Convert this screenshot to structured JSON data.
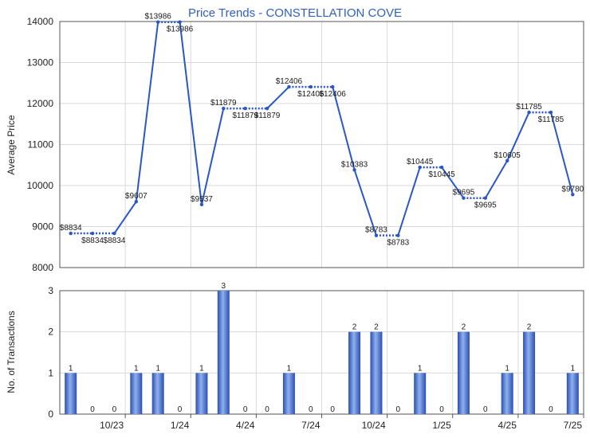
{
  "chart_data": [
    {
      "type": "line",
      "title": "Price Trends - CONSTELLATION COVE",
      "ylabel": "Average Price",
      "ylim": [
        8000,
        14000
      ],
      "yticks": [
        8000,
        9000,
        10000,
        11000,
        12000,
        13000,
        14000
      ],
      "grid": true,
      "series": [
        {
          "values": [
            8834,
            8834,
            8834,
            9607,
            13986,
            13986,
            9537,
            11879,
            11879,
            11879,
            12406,
            12406,
            12406,
            10383,
            8783,
            8783,
            10445,
            10445,
            9695,
            9695,
            10605,
            11785,
            11785,
            9780
          ],
          "labels": [
            "$8834",
            "$8834",
            "$8834",
            "$9607",
            "$13986",
            "$13986",
            "$9537",
            "$11879",
            "$11879",
            "$11879",
            "$12406",
            "$12406",
            "$12406",
            "$10383",
            "$8783",
            "$8783",
            "$10445",
            "$10445",
            "$9695",
            "$9695",
            "$10605",
            "$11785",
            "$11785",
            "$9780"
          ],
          "color": "#2a56c6"
        }
      ]
    },
    {
      "type": "bar",
      "ylabel": "No. of Transactions",
      "ylim": [
        0,
        3
      ],
      "yticks": [
        0,
        1,
        2,
        3
      ],
      "grid": true,
      "values": [
        1,
        0,
        0,
        1,
        1,
        0,
        1,
        3,
        0,
        0,
        1,
        0,
        0,
        2,
        2,
        0,
        1,
        0,
        2,
        0,
        1,
        2,
        0,
        1
      ],
      "color": "#3b64c8"
    }
  ],
  "x_axis": {
    "tick_labels": [
      "10/23",
      "1/24",
      "4/24",
      "7/24",
      "10/24",
      "1/25",
      "4/25",
      "7/25"
    ],
    "tick_months": [
      3,
      6,
      9,
      12,
      15,
      18,
      21,
      24
    ]
  },
  "colors": {
    "line": "#2a56c6",
    "bar": "#3b64c8",
    "title": "#2f5fc4",
    "grid": "#d9d9d9"
  }
}
